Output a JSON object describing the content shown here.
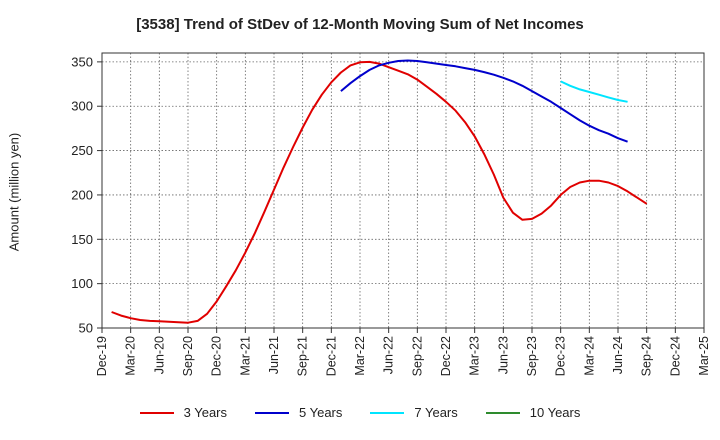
{
  "chart_data": {
    "type": "line",
    "title": "[3538]  Trend of StDev of 12-Month Moving Sum of Net Incomes",
    "ylabel": "Amount (million yen)",
    "xlabel": "",
    "ylim": [
      50,
      360
    ],
    "yticks": [
      50,
      100,
      150,
      200,
      250,
      300,
      350
    ],
    "xtick_labels": [
      "Dec-19",
      "Mar-20",
      "Jun-20",
      "Sep-20",
      "Dec-20",
      "Mar-21",
      "Jun-21",
      "Sep-21",
      "Dec-21",
      "Mar-22",
      "Jun-22",
      "Sep-22",
      "Dec-22",
      "Mar-23",
      "Jun-23",
      "Sep-23",
      "Dec-23",
      "Mar-24",
      "Jun-24",
      "Sep-24",
      "Dec-24",
      "Mar-25"
    ],
    "grid": true,
    "legend_position": "bottom",
    "series": [
      {
        "name": "3 Years",
        "color": "#e00000",
        "points": [
          [
            "Jan-20",
            68
          ],
          [
            "Feb-20",
            64
          ],
          [
            "Mar-20",
            61
          ],
          [
            "Apr-20",
            59
          ],
          [
            "May-20",
            58
          ],
          [
            "Jun-20",
            57.5
          ],
          [
            "Jul-20",
            57
          ],
          [
            "Aug-20",
            56.5
          ],
          [
            "Sep-20",
            56
          ],
          [
            "Oct-20",
            58
          ],
          [
            "Nov-20",
            66
          ],
          [
            "Dec-20",
            80
          ],
          [
            "Jan-21",
            97
          ],
          [
            "Feb-21",
            115
          ],
          [
            "Mar-21",
            135
          ],
          [
            "Apr-21",
            157
          ],
          [
            "May-21",
            181
          ],
          [
            "Jun-21",
            206
          ],
          [
            "Jul-21",
            231
          ],
          [
            "Aug-21",
            254
          ],
          [
            "Sep-21",
            276
          ],
          [
            "Oct-21",
            296
          ],
          [
            "Nov-21",
            313
          ],
          [
            "Dec-21",
            327
          ],
          [
            "Jan-22",
            338
          ],
          [
            "Feb-22",
            346
          ],
          [
            "Mar-22",
            349.5
          ],
          [
            "Apr-22",
            350
          ],
          [
            "May-22",
            348
          ],
          [
            "Jun-22",
            344
          ],
          [
            "Jul-22",
            340
          ],
          [
            "Aug-22",
            336
          ],
          [
            "Sep-22",
            330
          ],
          [
            "Oct-22",
            322
          ],
          [
            "Nov-22",
            314
          ],
          [
            "Dec-22",
            305
          ],
          [
            "Jan-23",
            295
          ],
          [
            "Feb-23",
            282
          ],
          [
            "Mar-23",
            266
          ],
          [
            "Apr-23",
            246
          ],
          [
            "May-23",
            223
          ],
          [
            "Jun-23",
            197
          ],
          [
            "Jul-23",
            180
          ],
          [
            "Aug-23",
            172
          ],
          [
            "Sep-23",
            173
          ],
          [
            "Oct-23",
            179
          ],
          [
            "Nov-23",
            188
          ],
          [
            "Dec-23",
            200
          ],
          [
            "Jan-24",
            209
          ],
          [
            "Feb-24",
            214
          ],
          [
            "Mar-24",
            216
          ],
          [
            "Apr-24",
            216
          ],
          [
            "May-24",
            214
          ],
          [
            "Jun-24",
            210
          ],
          [
            "Jul-24",
            204
          ],
          [
            "Aug-24",
            197
          ],
          [
            "Sep-24",
            190
          ]
        ]
      },
      {
        "name": "5 Years",
        "color": "#0000cc",
        "points": [
          [
            "Jan-22",
            317
          ],
          [
            "Feb-22",
            326
          ],
          [
            "Mar-22",
            334
          ],
          [
            "Apr-22",
            341
          ],
          [
            "May-22",
            346
          ],
          [
            "Jun-22",
            349
          ],
          [
            "Jul-22",
            351
          ],
          [
            "Aug-22",
            351.5
          ],
          [
            "Sep-22",
            351
          ],
          [
            "Oct-22",
            349.5
          ],
          [
            "Nov-22",
            348
          ],
          [
            "Dec-22",
            346.5
          ],
          [
            "Jan-23",
            345
          ],
          [
            "Feb-23",
            343
          ],
          [
            "Mar-23",
            341
          ],
          [
            "Apr-23",
            338.5
          ],
          [
            "May-23",
            335.5
          ],
          [
            "Jun-23",
            332
          ],
          [
            "Jul-23",
            328
          ],
          [
            "Aug-23",
            323
          ],
          [
            "Sep-23",
            317
          ],
          [
            "Oct-23",
            311
          ],
          [
            "Nov-23",
            305
          ],
          [
            "Dec-23",
            298
          ],
          [
            "Jan-24",
            291
          ],
          [
            "Feb-24",
            284
          ],
          [
            "Mar-24",
            278
          ],
          [
            "Apr-24",
            273
          ],
          [
            "May-24",
            269
          ],
          [
            "Jun-24",
            264
          ],
          [
            "Jul-24",
            260
          ]
        ]
      },
      {
        "name": "7 Years",
        "color": "#00e5ff",
        "points": [
          [
            "Dec-23",
            328
          ],
          [
            "Jan-24",
            323
          ],
          [
            "Feb-24",
            319
          ],
          [
            "Mar-24",
            316
          ],
          [
            "Apr-24",
            313
          ],
          [
            "May-24",
            310
          ],
          [
            "Jun-24",
            307
          ],
          [
            "Jul-24",
            305
          ]
        ]
      },
      {
        "name": "10 Years",
        "color": "#2e8b2e",
        "points": []
      }
    ]
  }
}
